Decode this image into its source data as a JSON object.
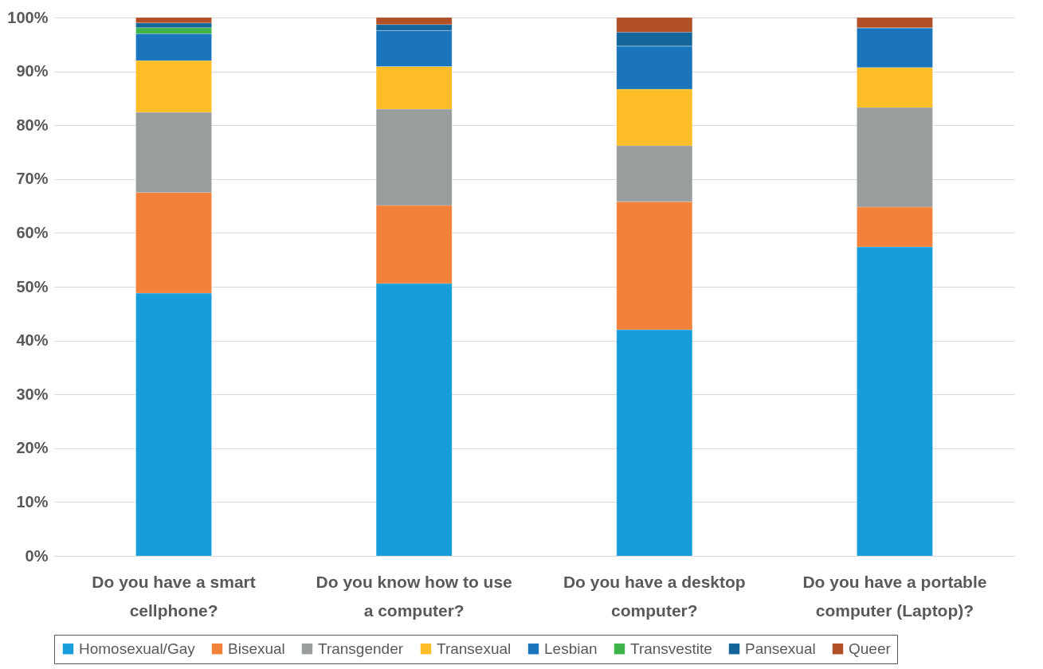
{
  "chart_data": {
    "type": "bar",
    "stacked": true,
    "categories": [
      "Do you have a smart cellphone?",
      "Do you know how to use a computer?",
      "Do you have a desktop computer?",
      "Do you have a portable computer (Laptop)?"
    ],
    "series": [
      {
        "name": "Homosexual/Gay",
        "color": "#179dd9",
        "values": [
          48.8,
          50.6,
          42.0,
          57.4
        ]
      },
      {
        "name": "Bisexual",
        "color": "#f3813a",
        "values": [
          18.7,
          14.5,
          23.8,
          7.4
        ]
      },
      {
        "name": "Transgender",
        "color": "#9a9d9d",
        "values": [
          14.9,
          17.9,
          10.4,
          18.5
        ]
      },
      {
        "name": "Transexual",
        "color": "#fdbd27",
        "values": [
          9.6,
          7.9,
          10.5,
          7.4
        ]
      },
      {
        "name": "Lesbian",
        "color": "#1b75bc",
        "values": [
          5.0,
          6.7,
          8.0,
          7.4
        ]
      },
      {
        "name": "Transvestite",
        "color": "#3cb44a",
        "values": [
          1.1,
          0,
          0,
          0
        ]
      },
      {
        "name": "Pansexual",
        "color": "#14669a",
        "values": [
          0.9,
          1.1,
          2.6,
          0
        ]
      },
      {
        "name": "Queer",
        "color": "#b14f26",
        "values": [
          1.0,
          1.3,
          2.7,
          1.9
        ]
      }
    ],
    "ylim": [
      0,
      100
    ],
    "yticks": [
      {
        "value": 0,
        "label": "0%"
      },
      {
        "value": 10,
        "label": "10%"
      },
      {
        "value": 20,
        "label": "20%"
      },
      {
        "value": 30,
        "label": "30%"
      },
      {
        "value": 40,
        "label": "40%"
      },
      {
        "value": 50,
        "label": "50%"
      },
      {
        "value": 60,
        "label": "60%"
      },
      {
        "value": 70,
        "label": "70%"
      },
      {
        "value": 80,
        "label": "80%"
      },
      {
        "value": 90,
        "label": "90%"
      },
      {
        "value": 100,
        "label": "100%"
      }
    ],
    "grid": "y",
    "legend": "bottom"
  }
}
